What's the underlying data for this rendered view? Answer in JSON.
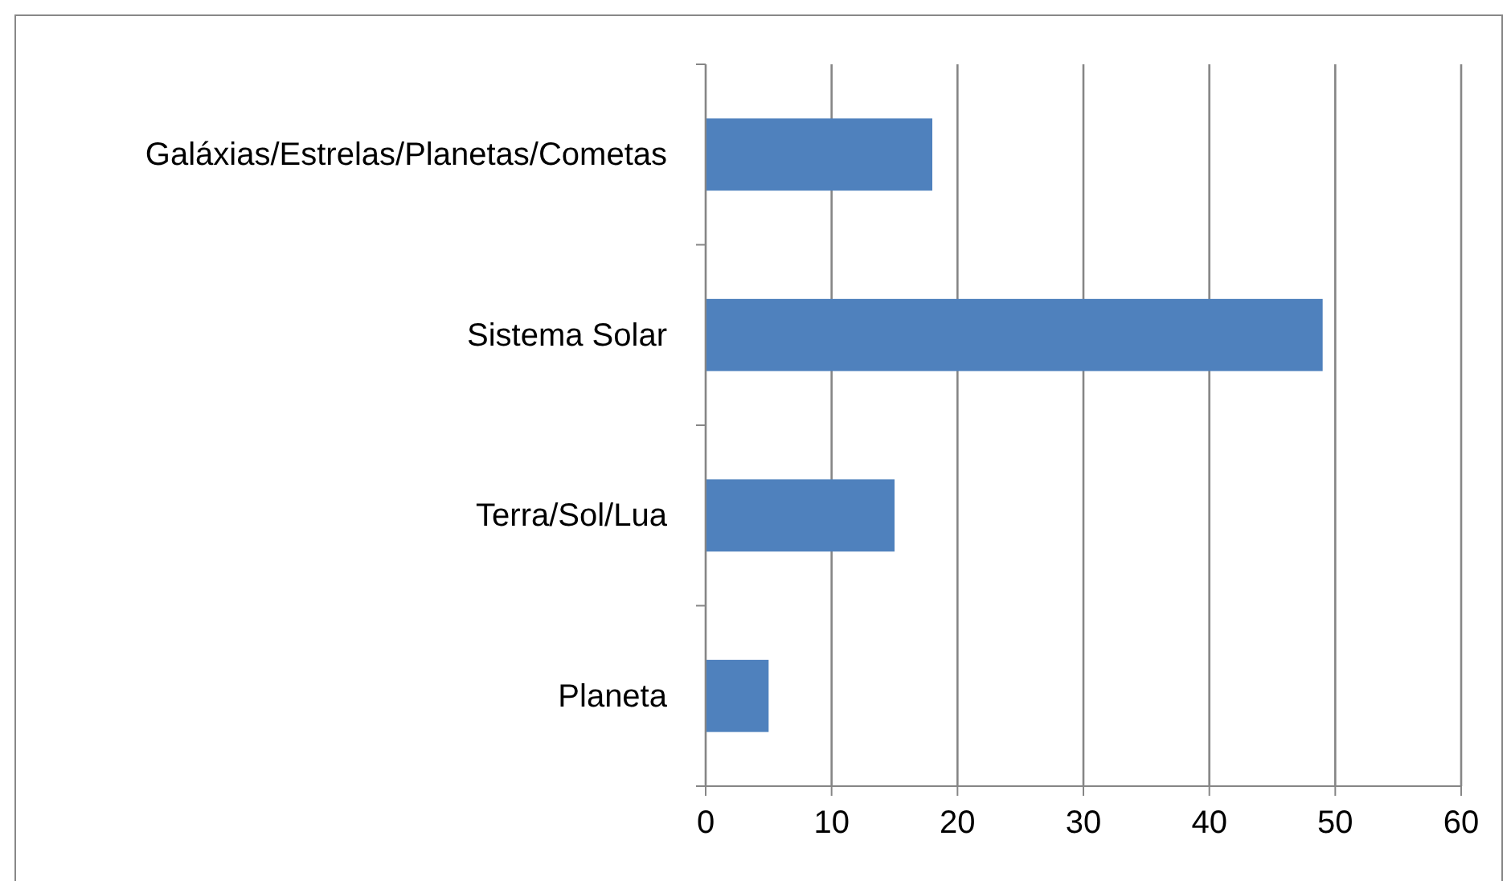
{
  "chart_data": {
    "type": "bar",
    "orientation": "horizontal",
    "categories": [
      "Galáxias/Estrelas/Planetas/Cometas",
      "Sistema Solar",
      "Terra/Sol/Lua",
      "Planeta"
    ],
    "values": [
      18,
      49,
      15,
      5
    ],
    "color": "#4f81bd",
    "xlim": [
      0,
      60
    ],
    "xticks": [
      0,
      10,
      20,
      30,
      40,
      50,
      60
    ],
    "grid": "x"
  }
}
